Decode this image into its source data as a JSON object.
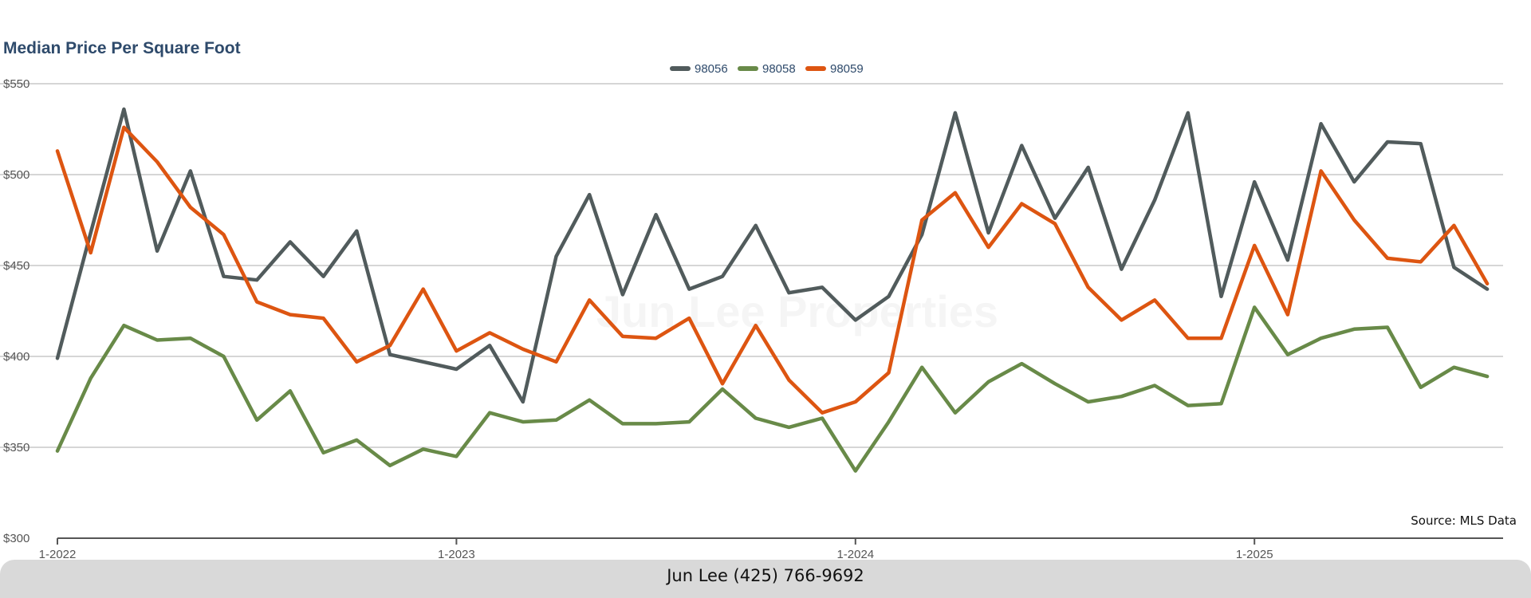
{
  "chart_data": {
    "type": "line",
    "title": "Median Price Per Square Foot",
    "ylim": [
      300,
      550
    ],
    "y_ticks": [
      "$300",
      "$350",
      "$400",
      "$450",
      "$500",
      "$550"
    ],
    "y_tick_values": [
      300,
      350,
      400,
      450,
      500,
      550
    ],
    "x_tick_labels": [
      "1-2022",
      "1-2023",
      "1-2024",
      "1-2025"
    ],
    "x_tick_months": [
      0,
      12,
      24,
      36
    ],
    "x": [
      "1-2022",
      "2-2022",
      "3-2022",
      "4-2022",
      "5-2022",
      "6-2022",
      "7-2022",
      "8-2022",
      "9-2022",
      "10-2022",
      "11-2022",
      "12-2022",
      "1-2023",
      "2-2023",
      "3-2023",
      "4-2023",
      "5-2023",
      "6-2023",
      "7-2023",
      "8-2023",
      "9-2023",
      "10-2023",
      "11-2023",
      "12-2023",
      "1-2024",
      "2-2024",
      "3-2024",
      "4-2024",
      "5-2024",
      "6-2024",
      "7-2024",
      "8-2024",
      "9-2024",
      "10-2024",
      "11-2024",
      "12-2024",
      "1-2025",
      "2-2025",
      "3-2025",
      "4-2025",
      "5-2025",
      "6-2025",
      "7-2025",
      "8-2025"
    ],
    "grid": true,
    "legend_position": "top-center",
    "series": [
      {
        "name": "98056",
        "color": "#515b5c",
        "values": [
          399,
          468,
          536,
          458,
          502,
          444,
          442,
          463,
          444,
          469,
          401,
          397,
          393,
          406,
          375,
          455,
          489,
          434,
          478,
          437,
          444,
          472,
          435,
          438,
          420,
          433,
          467,
          534,
          468,
          516,
          476,
          504,
          448,
          486,
          534,
          433,
          496,
          453,
          528,
          496,
          518,
          517,
          449,
          437
        ]
      },
      {
        "name": "98058",
        "color": "#688a48",
        "values": [
          348,
          388,
          417,
          409,
          410,
          400,
          365,
          381,
          347,
          354,
          340,
          349,
          345,
          369,
          364,
          365,
          376,
          363,
          363,
          364,
          382,
          366,
          361,
          366,
          337,
          364,
          394,
          369,
          386,
          396,
          385,
          375,
          378,
          384,
          373,
          374,
          427,
          401,
          410,
          415,
          416,
          383,
          394,
          389
        ]
      },
      {
        "name": "98059",
        "color": "#dd5511",
        "values": [
          513,
          457,
          526,
          507,
          482,
          467,
          430,
          423,
          421,
          397,
          406,
          437,
          403,
          413,
          404,
          397,
          431,
          411,
          410,
          421,
          385,
          417,
          387,
          369,
          375,
          391,
          475,
          490,
          460,
          484,
          473,
          438,
          420,
          431,
          410,
          410,
          461,
          423,
          502,
          475,
          454,
          452,
          472,
          440
        ]
      }
    ],
    "source": "Source: MLS Data",
    "watermark": "Jun Lee Properties"
  },
  "footer": {
    "contact": "Jun Lee (425) 766-9692"
  }
}
